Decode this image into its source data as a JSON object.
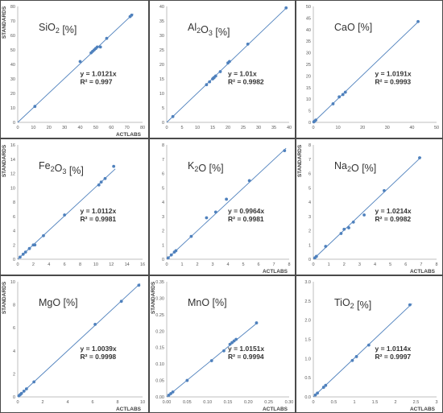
{
  "chart_data": [
    {
      "type": "scatter",
      "title": "SiO2 [%]",
      "title_parts": [
        {
          "t": "SiO"
        },
        {
          "t": "2",
          "sub": true
        },
        {
          "t": " [%]"
        }
      ],
      "xlabel": "ACTLABS",
      "ylabel": "STANDARDS",
      "xlim": [
        0,
        80
      ],
      "ylim": [
        0,
        80
      ],
      "xticks": [
        0,
        10,
        20,
        30,
        40,
        50,
        60,
        70,
        80
      ],
      "yticks": [
        0,
        10,
        20,
        30,
        40,
        50,
        60,
        70,
        80
      ],
      "tick_format": [
        "0",
        "10",
        "20",
        "30",
        "40",
        "50",
        "60",
        "70",
        "80"
      ],
      "equation": "y = 1.0121x",
      "r2": "R² = 0.997",
      "slope": 1.0121,
      "trend_to": 74,
      "series": [
        {
          "x": [
            11,
            40,
            47,
            48,
            49,
            50,
            51,
            53,
            57,
            72,
            73
          ],
          "y": [
            11,
            42,
            48,
            49,
            50,
            51,
            52,
            52,
            58,
            73,
            74
          ]
        }
      ]
    },
    {
      "type": "scatter",
      "title": "Al2O3 [%]",
      "title_parts": [
        {
          "t": "Al"
        },
        {
          "t": "2",
          "sub": true
        },
        {
          "t": "O"
        },
        {
          "t": "3",
          "sub": true
        },
        {
          "t": " [%]"
        }
      ],
      "xlabel": "",
      "ylabel": "",
      "xlim": [
        0,
        40
      ],
      "ylim": [
        0,
        40
      ],
      "xticks": [
        0,
        5,
        10,
        15,
        20,
        25,
        30,
        35,
        40
      ],
      "yticks": [
        0,
        5,
        10,
        15,
        20,
        25,
        30,
        35,
        40
      ],
      "tick_format": [
        "0",
        "5",
        "10",
        "15",
        "20",
        "25",
        "30",
        "35",
        "40"
      ],
      "equation": "y = 1.01x",
      "r2": "R² = 0.9982",
      "slope": 1.01,
      "trend_to": 39,
      "series": [
        {
          "x": [
            2,
            13,
            14,
            15,
            15.2,
            15.5,
            16,
            17.5,
            20,
            20.5,
            26.5,
            39
          ],
          "y": [
            2,
            13,
            14,
            15,
            15.2,
            15.5,
            16,
            17.5,
            20.5,
            21,
            27,
            39.5
          ]
        }
      ]
    },
    {
      "type": "scatter",
      "title": "CaO [%]",
      "title_parts": [
        {
          "t": "CaO [%]"
        }
      ],
      "xlabel": "",
      "ylabel": "",
      "xlim": [
        0,
        50
      ],
      "ylim": [
        0,
        50
      ],
      "xticks": [
        0,
        10,
        20,
        30,
        40,
        50
      ],
      "yticks": [
        0,
        5,
        10,
        15,
        20,
        25,
        30,
        35,
        40,
        45,
        50
      ],
      "tick_format": [
        "0",
        "10",
        "20",
        "30",
        "40",
        "50"
      ],
      "ytick_format": [
        "0",
        "5",
        "10",
        "15",
        "20",
        "25",
        "30",
        "35",
        "40",
        "45",
        "50"
      ],
      "equation": "y = 1.0191x",
      "r2": "R² = 0.9993",
      "slope": 1.0191,
      "trend_to": 42.5,
      "series": [
        {
          "x": [
            0.2,
            0.5,
            1,
            8,
            10.5,
            12,
            13,
            42.5
          ],
          "y": [
            0.2,
            0.5,
            1,
            8,
            11,
            12,
            13,
            43.5
          ]
        }
      ]
    },
    {
      "type": "scatter",
      "title": "Fe2O3 [%]",
      "title_parts": [
        {
          "t": "Fe"
        },
        {
          "t": "2",
          "sub": true
        },
        {
          "t": "O"
        },
        {
          "t": "3",
          "sub": true
        },
        {
          "t": " [%]"
        }
      ],
      "xlabel": "",
      "ylabel": "STANDARDS",
      "xlim": [
        0,
        16
      ],
      "ylim": [
        0,
        16
      ],
      "xticks": [
        0,
        2,
        4,
        6,
        8,
        10,
        12,
        14,
        16
      ],
      "yticks": [
        0,
        2,
        4,
        6,
        8,
        10,
        12,
        14,
        16
      ],
      "tick_format": [
        "0",
        "2",
        "4",
        "6",
        "8",
        "10",
        "12",
        "14",
        "16"
      ],
      "equation": "y = 1.0112x",
      "r2": "R² = 0.9981",
      "slope": 1.0112,
      "trend_to": 12.5,
      "series": [
        {
          "x": [
            0.3,
            0.7,
            1,
            1.5,
            2,
            2.2,
            3.3,
            6,
            10.4,
            10.7,
            11.2,
            12.3
          ],
          "y": [
            0.3,
            0.7,
            1,
            1.5,
            2,
            2,
            3.3,
            6.2,
            10.4,
            10.8,
            11.3,
            13
          ]
        }
      ]
    },
    {
      "type": "scatter",
      "title": "K2O [%]",
      "title_parts": [
        {
          "t": "K"
        },
        {
          "t": "2",
          "sub": true
        },
        {
          "t": "O [%]"
        }
      ],
      "xlabel": "ACTLABS",
      "ylabel": "",
      "xlim": [
        0,
        8
      ],
      "ylim": [
        0,
        8
      ],
      "xticks": [
        0,
        1,
        2,
        3,
        4,
        5,
        6,
        7,
        8
      ],
      "yticks": [
        0,
        1,
        2,
        3,
        4,
        5,
        6,
        7,
        8
      ],
      "tick_format": [
        "0",
        "1",
        "2",
        "3",
        "4",
        "5",
        "6",
        "7",
        "8"
      ],
      "equation": "y = 0.9964x",
      "r2": "R² = 0.9981",
      "slope": 0.9964,
      "trend_to": 7.8,
      "series": [
        {
          "x": [
            0.1,
            0.3,
            0.5,
            0.6,
            1.6,
            2.6,
            3.2,
            3.9,
            5.4,
            7.7
          ],
          "y": [
            0.1,
            0.3,
            0.5,
            0.6,
            1.6,
            2.9,
            3.3,
            4.2,
            5.5,
            7.6
          ]
        }
      ]
    },
    {
      "type": "scatter",
      "title": "Na2O [%]",
      "title_parts": [
        {
          "t": "Na"
        },
        {
          "t": "2",
          "sub": true
        },
        {
          "t": "O [%]"
        }
      ],
      "xlabel": "ACTLABS",
      "ylabel": "STANDARDS",
      "xlim": [
        0,
        8
      ],
      "ylim": [
        0,
        8
      ],
      "xticks": [
        0,
        1,
        2,
        3,
        4,
        5,
        6,
        7,
        8
      ],
      "yticks": [
        0,
        1,
        2,
        3,
        4,
        5,
        6,
        7,
        8
      ],
      "tick_format": [
        "0",
        "1",
        "2",
        "3",
        "4",
        "5",
        "6",
        "7",
        "8"
      ],
      "equation": "y = 1.0214x",
      "r2": "R² = 0.9982",
      "slope": 1.0214,
      "trend_to": 7,
      "series": [
        {
          "x": [
            0.1,
            0.2,
            0.8,
            1.8,
            2,
            2.3,
            2.6,
            3.3,
            4.6,
            6.9
          ],
          "y": [
            0.1,
            0.2,
            0.9,
            1.8,
            2.1,
            2.2,
            2.6,
            3.1,
            4.8,
            7.1
          ]
        }
      ]
    },
    {
      "type": "scatter",
      "title": "MgO [%]",
      "title_parts": [
        {
          "t": "MgO [%]"
        }
      ],
      "xlabel": "ACTLABS",
      "ylabel": "STANDARDS",
      "xlim": [
        0,
        10
      ],
      "ylim": [
        0,
        10
      ],
      "xticks": [
        0,
        2,
        4,
        6,
        8,
        10
      ],
      "yticks": [
        0,
        2,
        4,
        6,
        8,
        10
      ],
      "tick_format": [
        "0",
        "2",
        "4",
        "6",
        "8",
        "10"
      ],
      "equation": "y = 1.0039x",
      "r2": "R² = 0.9998",
      "slope": 1.0039,
      "trend_to": 9.8,
      "series": [
        {
          "x": [
            0.1,
            0.2,
            0.3,
            0.5,
            0.7,
            1.3,
            6.2,
            8.3,
            9.7
          ],
          "y": [
            0.1,
            0.2,
            0.3,
            0.5,
            0.7,
            1.3,
            6.3,
            8.3,
            9.7
          ]
        }
      ]
    },
    {
      "type": "scatter",
      "title": "MnO [%]",
      "title_parts": [
        {
          "t": "MnO [%]"
        }
      ],
      "xlabel": "ACTLABS",
      "ylabel": "STANDARDS",
      "xlim": [
        0,
        0.3
      ],
      "ylim": [
        0,
        0.35
      ],
      "xticks": [
        0,
        0.05,
        0.1,
        0.15,
        0.2,
        0.25,
        0.3
      ],
      "tick_format": [
        "0.00",
        "0.05",
        "0.10",
        "0.15",
        "0.20",
        "0.25",
        "0.30"
      ],
      "yticks": [
        0,
        0.05,
        0.1,
        0.15,
        0.2,
        0.25,
        0.3,
        0.35
      ],
      "ytick_format": [
        "0.00",
        "0.05",
        "0.10",
        "0.15",
        "0.20",
        "0.25",
        "0.30",
        "0.35"
      ],
      "equation": "y = 1.0151x",
      "r2": "R² = 0.9994",
      "slope": 1.0151,
      "trend_to": 0.22,
      "series": [
        {
          "x": [
            0.005,
            0.01,
            0.015,
            0.05,
            0.11,
            0.14,
            0.155,
            0.16,
            0.165,
            0.17,
            0.22
          ],
          "y": [
            0.005,
            0.01,
            0.015,
            0.05,
            0.11,
            0.14,
            0.16,
            0.165,
            0.17,
            0.175,
            0.225
          ]
        }
      ]
    },
    {
      "type": "scatter",
      "title": "TiO2 [%]",
      "title_parts": [
        {
          "t": "TiO"
        },
        {
          "t": "2",
          "sub": true
        },
        {
          "t": " [%]"
        }
      ],
      "xlabel": "ACTLABS",
      "ylabel": "",
      "xlim": [
        0,
        3
      ],
      "ylim": [
        0,
        3
      ],
      "xticks": [
        0,
        0.5,
        1,
        1.5,
        2,
        2.5,
        3
      ],
      "tick_format": [
        "0",
        "0.5",
        "1",
        "1.5",
        "2",
        "2.5",
        "3"
      ],
      "yticks": [
        0,
        0.5,
        1,
        1.5,
        2,
        2.5,
        3
      ],
      "ytick_format": [
        "0.0",
        "0.5",
        "1.0",
        "1.5",
        "2.0",
        "2.5",
        "3.0"
      ],
      "equation": "y = 1.0114x",
      "r2": "R² = 0.9997",
      "slope": 1.0114,
      "trend_to": 2.4,
      "series": [
        {
          "x": [
            0.05,
            0.1,
            0.25,
            0.3,
            0.95,
            1.05,
            1.35,
            2.35
          ],
          "y": [
            0.05,
            0.1,
            0.25,
            0.3,
            0.95,
            1.05,
            1.35,
            2.4
          ]
        }
      ]
    }
  ]
}
